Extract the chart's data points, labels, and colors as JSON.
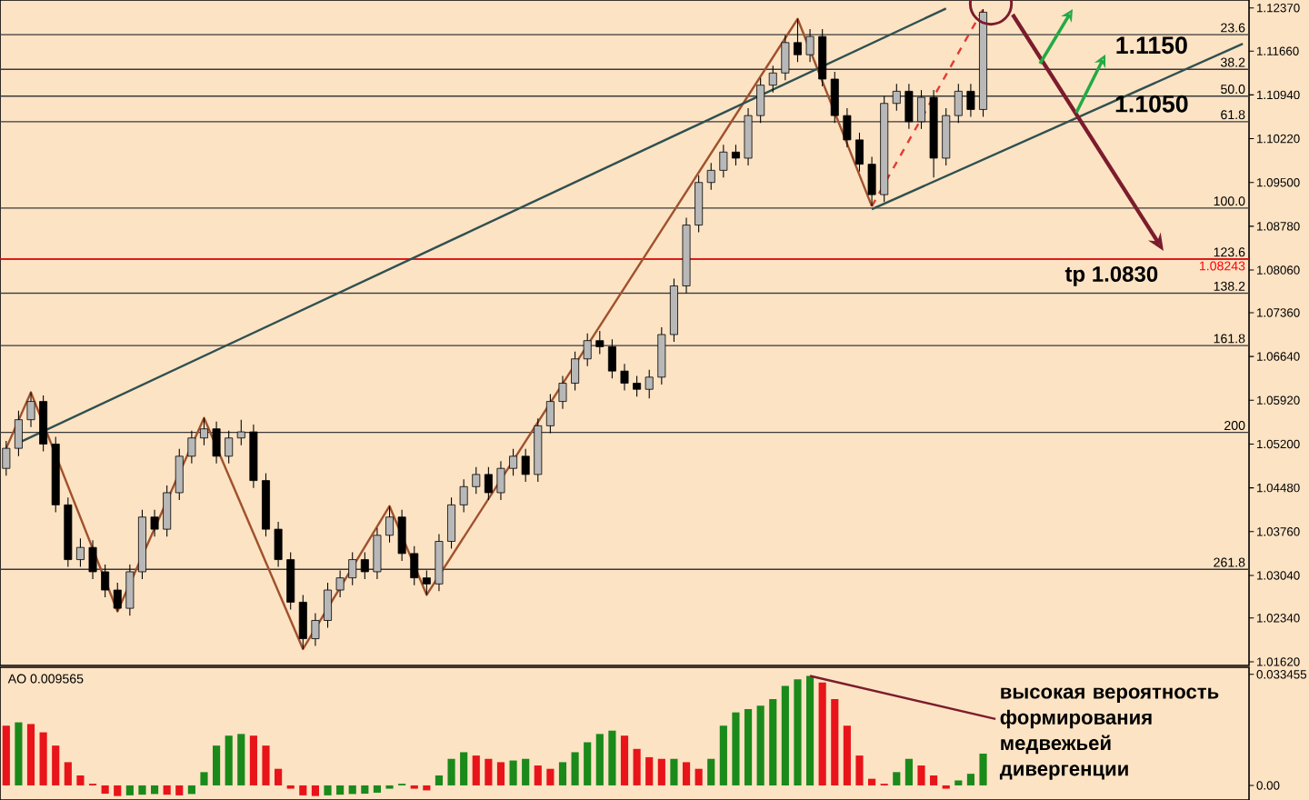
{
  "chart_data": [
    {
      "type": "candlestick",
      "categories": [
        null,
        null,
        null,
        null,
        null,
        null,
        null,
        null,
        null,
        null,
        null,
        null,
        null,
        null,
        null,
        null,
        null,
        null,
        null,
        null,
        null,
        null,
        null,
        null,
        null,
        null,
        null,
        null,
        null,
        null,
        null,
        null,
        null,
        null,
        null,
        null,
        null,
        null,
        null,
        null,
        null,
        null,
        null,
        null,
        null,
        null,
        null,
        null,
        null,
        null,
        null,
        null,
        null,
        null,
        null,
        null,
        null,
        null,
        null,
        null,
        null,
        null,
        null,
        null,
        null,
        null,
        null,
        null,
        null,
        null,
        null,
        null,
        null,
        null,
        null,
        null,
        null,
        null,
        null,
        null,
        null,
        null,
        null,
        null,
        null,
        null,
        null,
        null,
        null,
        null,
        null,
        null,
        null,
        null,
        null,
        null,
        null,
        null,
        null,
        null,
        null
      ],
      "ohlc": [
        [
          1.048,
          1.0525,
          1.0468,
          1.0513
        ],
        [
          1.0513,
          1.0575,
          1.05,
          1.056
        ],
        [
          1.056,
          1.0605,
          1.0548,
          1.059
        ],
        [
          1.059,
          1.06,
          1.0508,
          1.052
        ],
        [
          1.052,
          1.0532,
          1.0408,
          1.042
        ],
        [
          1.042,
          1.0432,
          1.0318,
          1.033
        ],
        [
          1.033,
          1.0365,
          1.0318,
          1.035
        ],
        [
          1.035,
          1.0362,
          1.0298,
          1.031
        ],
        [
          1.031,
          1.0322,
          1.0268,
          1.028
        ],
        [
          1.028,
          1.0292,
          1.0245,
          1.025
        ],
        [
          1.025,
          1.0322,
          1.0238,
          1.031
        ],
        [
          1.031,
          1.0412,
          1.0298,
          1.04
        ],
        [
          1.04,
          1.0412,
          1.0368,
          1.038
        ],
        [
          1.038,
          1.0452,
          1.0368,
          1.044
        ],
        [
          1.044,
          1.0512,
          1.0428,
          1.05
        ],
        [
          1.05,
          1.0542,
          1.0488,
          1.053
        ],
        [
          1.053,
          1.0563,
          1.0518,
          1.0545
        ],
        [
          1.0545,
          1.0557,
          1.0488,
          1.05
        ],
        [
          1.05,
          1.0542,
          1.0488,
          1.053
        ],
        [
          1.053,
          1.056,
          1.0518,
          1.054
        ],
        [
          1.054,
          1.0552,
          1.0448,
          1.046
        ],
        [
          1.046,
          1.0472,
          1.0368,
          1.038
        ],
        [
          1.038,
          1.0392,
          1.0318,
          1.033
        ],
        [
          1.033,
          1.0342,
          1.0248,
          1.026
        ],
        [
          1.026,
          1.0272,
          1.0183,
          1.02
        ],
        [
          1.02,
          1.0242,
          1.0188,
          1.023
        ],
        [
          1.023,
          1.0292,
          1.0218,
          1.028
        ],
        [
          1.028,
          1.0312,
          1.0268,
          1.03
        ],
        [
          1.03,
          1.0342,
          1.0288,
          1.033
        ],
        [
          1.033,
          1.0342,
          1.0298,
          1.031
        ],
        [
          1.031,
          1.0382,
          1.0298,
          1.037
        ],
        [
          1.037,
          1.0418,
          1.0358,
          1.04
        ],
        [
          1.04,
          1.0412,
          1.0328,
          1.034
        ],
        [
          1.034,
          1.0352,
          1.0288,
          1.03
        ],
        [
          1.03,
          1.0312,
          1.0272,
          1.029
        ],
        [
          1.029,
          1.0372,
          1.0278,
          1.036
        ],
        [
          1.036,
          1.0432,
          1.0348,
          1.042
        ],
        [
          1.042,
          1.0462,
          1.0408,
          1.045
        ],
        [
          1.045,
          1.0482,
          1.0438,
          1.047
        ],
        [
          1.047,
          1.0482,
          1.0428,
          1.044
        ],
        [
          1.044,
          1.0492,
          1.0428,
          1.048
        ],
        [
          1.048,
          1.0512,
          1.0468,
          1.05
        ],
        [
          1.05,
          1.0512,
          1.0458,
          1.047
        ],
        [
          1.047,
          1.0562,
          1.0458,
          1.055
        ],
        [
          1.055,
          1.0602,
          1.0538,
          1.059
        ],
        [
          1.059,
          1.0632,
          1.0578,
          1.062
        ],
        [
          1.062,
          1.0672,
          1.0608,
          1.066
        ],
        [
          1.066,
          1.0702,
          1.0648,
          1.069
        ],
        [
          1.069,
          1.0706,
          1.0668,
          1.068
        ],
        [
          1.068,
          1.0692,
          1.0628,
          1.064
        ],
        [
          1.064,
          1.0652,
          1.0608,
          1.062
        ],
        [
          1.062,
          1.0632,
          1.0598,
          1.061
        ],
        [
          1.061,
          1.0642,
          1.0595,
          1.063
        ],
        [
          1.063,
          1.0712,
          1.0618,
          1.07
        ],
        [
          1.07,
          1.0792,
          1.0688,
          1.078
        ],
        [
          1.078,
          1.0892,
          1.0768,
          1.088
        ],
        [
          1.088,
          1.0962,
          1.0868,
          1.095
        ],
        [
          1.095,
          1.0982,
          1.0938,
          1.097
        ],
        [
          1.097,
          1.1012,
          1.0958,
          1.1
        ],
        [
          1.1,
          1.1012,
          1.0978,
          1.099
        ],
        [
          1.099,
          1.1072,
          1.0978,
          1.106
        ],
        [
          1.106,
          1.1122,
          1.1048,
          1.111
        ],
        [
          1.111,
          1.1142,
          1.1098,
          1.113
        ],
        [
          1.113,
          1.1192,
          1.1118,
          1.118
        ],
        [
          1.118,
          1.1219,
          1.1148,
          1.116
        ],
        [
          1.116,
          1.1202,
          1.1148,
          1.119
        ],
        [
          1.119,
          1.1202,
          1.1108,
          1.112
        ],
        [
          1.112,
          1.1132,
          1.1048,
          1.106
        ],
        [
          1.106,
          1.1072,
          1.1008,
          1.102
        ],
        [
          1.102,
          1.1032,
          1.0968,
          1.098
        ],
        [
          1.098,
          1.0992,
          1.0911,
          1.093
        ],
        [
          1.093,
          1.1092,
          1.0918,
          1.108
        ],
        [
          1.108,
          1.1112,
          1.1068,
          1.11
        ],
        [
          1.11,
          1.1112,
          1.1038,
          1.105
        ],
        [
          1.105,
          1.1102,
          1.1038,
          1.109
        ],
        [
          1.109,
          1.1102,
          1.0958,
          1.099
        ],
        [
          1.099,
          1.1072,
          1.0978,
          1.106
        ],
        [
          1.106,
          1.1112,
          1.1048,
          1.11
        ],
        [
          1.11,
          1.1112,
          1.1058,
          1.107
        ],
        [
          1.107,
          1.1235,
          1.1058,
          1.123
        ],
        null,
        null,
        null,
        null,
        null,
        null,
        null,
        null,
        null,
        null,
        null,
        null,
        null,
        null,
        null,
        null,
        null,
        null,
        null,
        null,
        null
      ],
      "series": [
        {
          "type": "line",
          "color": "#a0522d",
          "values": [
            1.0513,
            null,
            1.0605,
            null,
            null,
            null,
            null,
            null,
            null,
            1.0245,
            null,
            null,
            null,
            null,
            null,
            null,
            1.0563,
            null,
            null,
            null,
            null,
            null,
            null,
            null,
            1.0183,
            null,
            null,
            null,
            null,
            null,
            null,
            1.0418,
            null,
            null,
            1.0272,
            null,
            null,
            null,
            null,
            null,
            null,
            null,
            null,
            null,
            null,
            null,
            null,
            null,
            null,
            null,
            null,
            null,
            null,
            null,
            null,
            null,
            null,
            null,
            null,
            null,
            null,
            null,
            null,
            null,
            1.1219,
            null,
            null,
            null,
            null,
            null,
            1.0911,
            null,
            null,
            null,
            null,
            null,
            null,
            null,
            null,
            null,
            null,
            null,
            null,
            null,
            null,
            null,
            null,
            null,
            null,
            null,
            null,
            null,
            null,
            null,
            null,
            null,
            null,
            null,
            null,
            null,
            null
          ]
        },
        {
          "type": "line",
          "color": "#e03c31",
          "line_style": "dashed",
          "values": [
            null,
            null,
            null,
            null,
            null,
            null,
            null,
            null,
            null,
            null,
            null,
            null,
            null,
            null,
            null,
            null,
            null,
            null,
            null,
            null,
            null,
            null,
            null,
            null,
            null,
            null,
            null,
            null,
            null,
            null,
            null,
            null,
            null,
            null,
            null,
            null,
            null,
            null,
            null,
            null,
            null,
            null,
            null,
            null,
            null,
            null,
            null,
            null,
            null,
            null,
            null,
            null,
            null,
            null,
            null,
            null,
            null,
            null,
            null,
            null,
            null,
            null,
            null,
            null,
            null,
            null,
            null,
            null,
            null,
            null,
            1.0911,
            null,
            null,
            null,
            null,
            null,
            null,
            null,
            null,
            1.1235,
            null,
            null,
            null,
            null,
            null,
            null,
            null,
            null,
            null,
            null,
            null,
            null,
            null,
            null,
            null,
            null,
            null,
            null,
            null,
            null,
            null
          ]
        },
        {
          "type": "line",
          "color": "#2f5050",
          "values": [
            null,
            1.0522,
            null,
            null,
            null,
            null,
            null,
            null,
            null,
            null,
            null,
            null,
            null,
            null,
            null,
            null,
            null,
            null,
            null,
            null,
            null,
            null,
            null,
            null,
            null,
            null,
            null,
            null,
            null,
            null,
            null,
            null,
            null,
            null,
            null,
            null,
            null,
            null,
            null,
            null,
            null,
            null,
            null,
            null,
            null,
            null,
            null,
            null,
            null,
            null,
            null,
            null,
            null,
            null,
            null,
            null,
            null,
            null,
            null,
            null,
            null,
            null,
            null,
            null,
            null,
            null,
            null,
            null,
            null,
            null,
            null,
            null,
            null,
            null,
            null,
            null,
            1.1236,
            null,
            null,
            null,
            null,
            null,
            null,
            null,
            null,
            null,
            null,
            null,
            null,
            null,
            null,
            null,
            null,
            null,
            null,
            null,
            null,
            null,
            null,
            null,
            null
          ]
        },
        {
          "type": "line",
          "color": "#2f5050",
          "values": [
            null,
            null,
            null,
            null,
            null,
            null,
            null,
            null,
            null,
            null,
            null,
            null,
            null,
            null,
            null,
            null,
            null,
            null,
            null,
            null,
            null,
            null,
            null,
            null,
            null,
            null,
            null,
            null,
            null,
            null,
            null,
            null,
            null,
            null,
            null,
            null,
            null,
            null,
            null,
            null,
            null,
            null,
            null,
            null,
            null,
            null,
            null,
            null,
            null,
            null,
            null,
            null,
            null,
            null,
            null,
            null,
            null,
            null,
            null,
            null,
            null,
            null,
            null,
            null,
            null,
            null,
            null,
            null,
            null,
            null,
            1.0906,
            null,
            null,
            null,
            null,
            null,
            null,
            null,
            null,
            null,
            null,
            null,
            null,
            null,
            null,
            null,
            null,
            null,
            null,
            null,
            null,
            null,
            null,
            null,
            null,
            null,
            null,
            null,
            null,
            null,
            1.1178
          ]
        }
      ],
      "ylim": [
        1.0156,
        1.125
      ],
      "yticks": [
        {
          "value": 1.1237,
          "label": "1.12370"
        },
        {
          "value": 1.1166,
          "label": "1.11660"
        },
        {
          "value": 1.1094,
          "label": "1.10940"
        },
        {
          "value": 1.1022,
          "label": "1.10220"
        },
        {
          "value": 1.095,
          "label": "1.09500"
        },
        {
          "value": 1.0878,
          "label": "1.08780"
        },
        {
          "value": 1.0806,
          "label": "1.08060"
        },
        {
          "value": 1.0736,
          "label": "1.07360"
        },
        {
          "value": 1.0664,
          "label": "1.06640"
        },
        {
          "value": 1.0592,
          "label": "1.05920"
        },
        {
          "value": 1.052,
          "label": "1.05200"
        },
        {
          "value": 1.0448,
          "label": "1.04480"
        },
        {
          "value": 1.0376,
          "label": "1.03760"
        },
        {
          "value": 1.0304,
          "label": "1.03040"
        },
        {
          "value": 1.0234,
          "label": "1.02340"
        },
        {
          "value": 1.0162,
          "label": "1.01620"
        }
      ],
      "ref_lines": [
        {
          "axis": "y",
          "value": 1.1193
        },
        {
          "axis": "y",
          "value": 1.1136
        },
        {
          "axis": "y",
          "value": 1.1092
        },
        {
          "axis": "y",
          "value": 1.105
        },
        {
          "axis": "y",
          "value": 1.0908
        },
        {
          "axis": "y",
          "value": 1.0824
        },
        {
          "axis": "y",
          "value": 1.0768
        },
        {
          "axis": "y",
          "value": 1.0682
        },
        {
          "axis": "y",
          "value": 1.0539
        },
        {
          "axis": "y",
          "value": 1.0314
        },
        {
          "axis": "y",
          "value": 1.08243,
          "label": "1.08243",
          "color": "#ff0000"
        }
      ],
      "annotations": [
        "1.1150",
        "1.1050",
        "tp 1.0830",
        {
          "text": "23.6",
          "y": 1.1193
        },
        {
          "text": "38.2",
          "y": 1.1136
        },
        {
          "text": "50.0",
          "y": 1.1092
        },
        {
          "text": "61.8",
          "y": 1.105
        },
        {
          "text": "100.0",
          "y": 1.0908
        },
        {
          "text": "123.6",
          "y": 1.0824
        },
        {
          "text": "138.2",
          "y": 1.0768
        },
        {
          "text": "161.8",
          "y": 1.0682
        },
        {
          "text": "200",
          "y": 1.0539
        },
        {
          "text": "261.8",
          "y": 1.0314
        }
      ],
      "tick_labels": "y"
    },
    {
      "type": "bar",
      "title": "AO 0.009565",
      "categories": [
        null,
        null,
        null,
        null,
        null,
        null,
        null,
        null,
        null,
        null,
        null,
        null,
        null,
        null,
        null,
        null,
        null,
        null,
        null,
        null,
        null,
        null,
        null,
        null,
        null,
        null,
        null,
        null,
        null,
        null,
        null,
        null,
        null,
        null,
        null,
        null,
        null,
        null,
        null,
        null,
        null,
        null,
        null,
        null,
        null,
        null,
        null,
        null,
        null,
        null,
        null,
        null,
        null,
        null,
        null,
        null,
        null,
        null,
        null,
        null,
        null,
        null,
        null,
        null,
        null,
        null,
        null,
        null,
        null,
        null,
        null,
        null,
        null,
        null,
        null,
        null,
        null,
        null,
        null,
        null,
        null,
        null,
        null,
        null,
        null,
        null,
        null,
        null,
        null,
        null,
        null,
        null,
        null,
        null,
        null,
        null,
        null,
        null,
        null,
        null,
        null
      ],
      "series": [
        {
          "type": "bar",
          "values": [
            0.018,
            0.019,
            0.0185,
            0.016,
            0.012,
            0.007,
            0.003,
            0.0005,
            -0.0025,
            -0.0032,
            -0.003,
            -0.0028,
            -0.0026,
            -0.0028,
            -0.003,
            -0.0026,
            0.004,
            0.012,
            0.015,
            0.0155,
            0.015,
            0.012,
            0.005,
            -0.001,
            -0.003,
            -0.0032,
            -0.003,
            -0.0028,
            -0.0026,
            -0.0025,
            -0.0022,
            -0.001,
            0.0005,
            -0.001,
            -0.0015,
            0.003,
            0.008,
            0.01,
            0.009,
            0.008,
            0.007,
            0.0075,
            0.008,
            0.006,
            0.005,
            0.007,
            0.01,
            0.013,
            0.0155,
            0.0165,
            0.015,
            0.011,
            0.0085,
            0.008,
            0.008,
            0.007,
            0.005,
            0.008,
            0.018,
            0.022,
            0.023,
            0.024,
            0.026,
            0.03,
            0.032,
            0.033,
            0.031,
            0.026,
            0.018,
            0.009,
            0.002,
            0.0005,
            0.004,
            0.008,
            0.006,
            0.003,
            -0.001,
            0.0015,
            0.0035,
            0.009565,
            null,
            null,
            null,
            null,
            null,
            null,
            null,
            null,
            null,
            null,
            null,
            null,
            null,
            null,
            null,
            null,
            null,
            null,
            null,
            null,
            null
          ],
          "colors": [
            "#e8141a",
            "#1a8a1a",
            "#e8141a",
            "#e8141a",
            "#e8141a",
            "#e8141a",
            "#e8141a",
            "#e8141a",
            "#e8141a",
            "#e8141a",
            "#1a8a1a",
            "#1a8a1a",
            "#1a8a1a",
            "#e8141a",
            "#e8141a",
            "#1a8a1a",
            "#1a8a1a",
            "#1a8a1a",
            "#1a8a1a",
            "#1a8a1a",
            "#e8141a",
            "#e8141a",
            "#e8141a",
            "#e8141a",
            "#e8141a",
            "#e8141a",
            "#1a8a1a",
            "#1a8a1a",
            "#1a8a1a",
            "#1a8a1a",
            "#1a8a1a",
            "#1a8a1a",
            "#1a8a1a",
            "#e8141a",
            "#e8141a",
            "#1a8a1a",
            "#1a8a1a",
            "#1a8a1a",
            "#e8141a",
            "#e8141a",
            "#e8141a",
            "#1a8a1a",
            "#1a8a1a",
            "#e8141a",
            "#e8141a",
            "#1a8a1a",
            "#1a8a1a",
            "#1a8a1a",
            "#1a8a1a",
            "#1a8a1a",
            "#e8141a",
            "#e8141a",
            "#e8141a",
            "#e8141a",
            "#1a8a1a",
            "#e8141a",
            "#e8141a",
            "#1a8a1a",
            "#1a8a1a",
            "#1a8a1a",
            "#1a8a1a",
            "#1a8a1a",
            "#1a8a1a",
            "#1a8a1a",
            "#1a8a1a",
            "#1a8a1a",
            "#e8141a",
            "#e8141a",
            "#e8141a",
            "#e8141a",
            "#e8141a",
            "#e8141a",
            "#1a8a1a",
            "#1a8a1a",
            "#e8141a",
            "#e8141a",
            "#e8141a",
            "#1a8a1a",
            "#1a8a1a",
            "#1a8a1a",
            null,
            null,
            null,
            null,
            null,
            null,
            null,
            null,
            null,
            null,
            null,
            null,
            null,
            null,
            null,
            null,
            null,
            null,
            null,
            null,
            null
          ]
        },
        {
          "type": "line",
          "color": "#7b1c2c",
          "values": [
            null,
            null,
            null,
            null,
            null,
            null,
            null,
            null,
            null,
            null,
            null,
            null,
            null,
            null,
            null,
            null,
            null,
            null,
            null,
            null,
            null,
            null,
            null,
            null,
            null,
            null,
            null,
            null,
            null,
            null,
            null,
            null,
            null,
            null,
            null,
            null,
            null,
            null,
            null,
            null,
            null,
            null,
            null,
            null,
            null,
            null,
            null,
            null,
            null,
            null,
            null,
            null,
            null,
            null,
            null,
            null,
            null,
            null,
            null,
            null,
            null,
            null,
            null,
            null,
            null,
            0.033,
            null,
            null,
            null,
            null,
            null,
            null,
            null,
            null,
            null,
            null,
            null,
            null,
            null,
            null,
            0.02,
            null,
            null,
            null,
            null,
            null,
            null,
            null,
            null,
            null,
            null,
            null,
            null,
            null,
            null,
            null,
            null,
            null,
            null,
            null,
            null
          ]
        }
      ],
      "ylim": [
        -0.0044,
        0.0356
      ],
      "yticks": [
        0.033455,
        {
          "value": 0,
          "label": "0.00"
        }
      ],
      "annotations": [
        "высокая вероятность формирования медвежьей дивергенции"
      ],
      "tick_labels": "y"
    }
  ]
}
